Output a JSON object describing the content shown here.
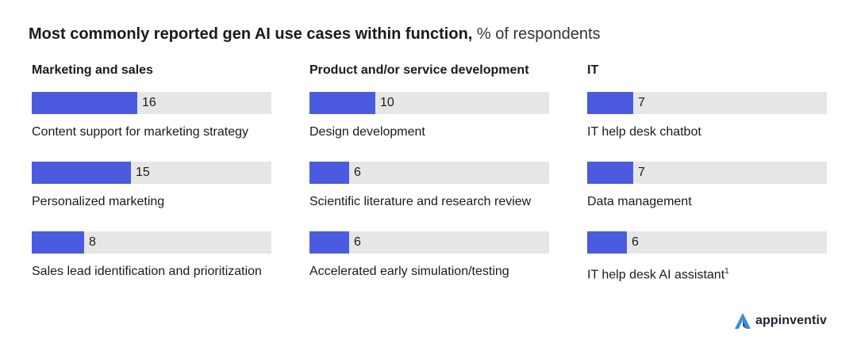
{
  "header": {
    "title_bold": "Most commonly reported gen AI use cases within function,",
    "title_rest": "% of respondents"
  },
  "colors": {
    "bar": "#4a5be0",
    "track": "#e6e6e6"
  },
  "chart_data": {
    "type": "bar",
    "orientation": "horizontal",
    "unit": "% of respondents",
    "xlim": [
      0,
      100
    ],
    "panels": [
      {
        "title": "Marketing and sales",
        "items": [
          {
            "label": "Content support for marketing strategy",
            "value": 16
          },
          {
            "label": "Personalized marketing",
            "value": 15
          },
          {
            "label": "Sales lead identification and prioritization",
            "value": 8
          }
        ]
      },
      {
        "title": "Product and/or service development",
        "items": [
          {
            "label": "Design development",
            "value": 10
          },
          {
            "label": "Scientific literature and research review",
            "value": 6
          },
          {
            "label": "Accelerated early simulation/testing",
            "value": 6
          }
        ]
      },
      {
        "title": "IT",
        "items": [
          {
            "label": "IT help desk chatbot",
            "value": 7
          },
          {
            "label": "Data management",
            "value": 7
          },
          {
            "label": "IT help desk AI assistant",
            "value": 6,
            "footnote": "1"
          }
        ]
      }
    ]
  },
  "brand": {
    "name": "appinventiv",
    "icon": "appinventiv-logo-icon"
  }
}
